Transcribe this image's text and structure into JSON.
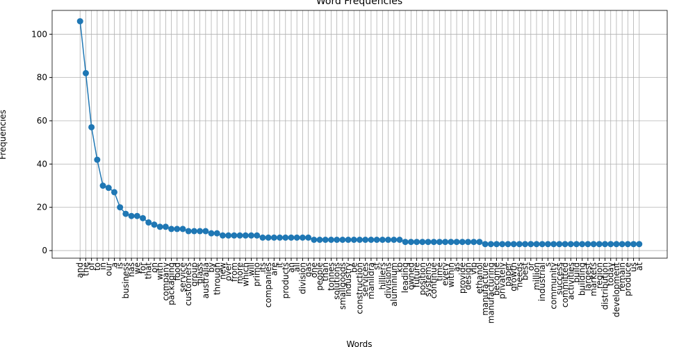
{
  "chart_data": {
    "type": "line",
    "title": "Word Frequencies",
    "x_label": "Words",
    "y_label": "Frequencies",
    "categories": [
      "and",
      "the",
      "of",
      "to",
      "in",
      "our",
      "a",
      "is",
      "business",
      "has",
      "we",
      "for",
      "that",
      "on",
      "with",
      "company",
      "packaging",
      "food",
      "service",
      "customers",
      "group",
      "glass",
      "australia",
      "by",
      "through",
      "new",
      "over",
      "from",
      "more",
      "which",
      "will",
      "primo",
      "its",
      "companies",
      "are",
      "it",
      "products",
      "an",
      "all",
      "division",
      "gas",
      "one",
      "people",
      "than",
      "tonnes",
      "solutions",
      "smallgoods",
      "industry",
      "be",
      "construction",
      "services",
      "manildra",
      "st",
      "hilliers",
      "divisions",
      "aluminium",
      "kb",
      "leading",
      "owned",
      "future",
      "position",
      "systems",
      "continue",
      "time",
      "every",
      "within",
      "as",
      "provide",
      "design",
      "vip",
      "ethanol",
      "manufacture",
      "manufacturing",
      "become",
      "privately",
      "paper",
      "growth",
      "needs",
      "best",
      "or",
      "million",
      "industrial",
      "s",
      "community",
      "success",
      "committed",
      "activities",
      "build",
      "building",
      "largest",
      "markets",
      "region",
      "distribution",
      "today",
      "development",
      "remain",
      "produce",
      "us",
      "at"
    ],
    "values": [
      106,
      82,
      57,
      42,
      30,
      29,
      27,
      20,
      17,
      16,
      16,
      15,
      13,
      12,
      11,
      11,
      10,
      10,
      10,
      9,
      9,
      9,
      9,
      8,
      8,
      7,
      7,
      7,
      7,
      7,
      7,
      7,
      6,
      6,
      6,
      6,
      6,
      6,
      6,
      6,
      6,
      5,
      5,
      5,
      5,
      5,
      5,
      5,
      5,
      5,
      5,
      5,
      5,
      5,
      5,
      5,
      5,
      4,
      4,
      4,
      4,
      4,
      4,
      4,
      4,
      4,
      4,
      4,
      4,
      4,
      4,
      3,
      3,
      3,
      3,
      3,
      3,
      3,
      3,
      3,
      3,
      3,
      3,
      3,
      3,
      3,
      3,
      3,
      3,
      3,
      3,
      3,
      3,
      3,
      3,
      3,
      3,
      3,
      3
    ],
    "color": "#1f77b4",
    "ylim": [
      -3.5,
      111
    ],
    "yticks": [
      0,
      20,
      40,
      60,
      80,
      100
    ],
    "grid": true
  }
}
